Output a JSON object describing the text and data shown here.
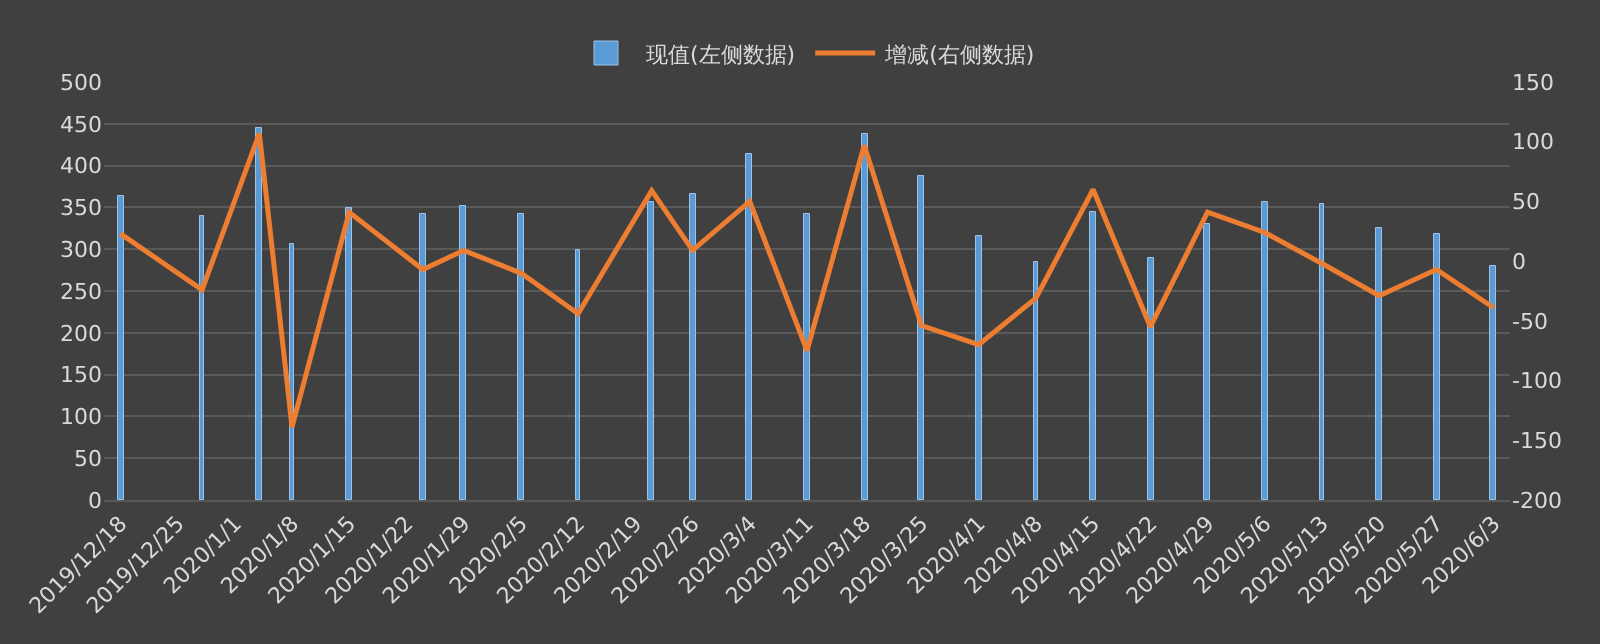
{
  "chart_data": {
    "type": "bar",
    "x": [
      "2019-12-18",
      "2019-12-28",
      "2020-01-04",
      "2020-01-08",
      "2020-01-15",
      "2020-01-24",
      "2020-01-29",
      "2020-02-05",
      "2020-02-12",
      "2020-02-21",
      "2020-02-26",
      "2020-03-04",
      "2020-03-11",
      "2020-03-18",
      "2020-03-25",
      "2020-04-01",
      "2020-04-08",
      "2020-04-15",
      "2020-04-22",
      "2020-04-29",
      "2020-05-06",
      "2020-05-13",
      "2020-05-20",
      "2020-05-27",
      "2020-06-03"
    ],
    "series": [
      {
        "name": "现值(左侧数据)",
        "color": "#5b9bd5",
        "values": [
          363,
          340,
          445,
          306,
          349,
          342,
          351,
          342,
          298,
          357,
          366,
          415,
          342,
          439,
          387,
          316,
          284,
          345,
          290,
          331,
          357,
          353,
          325,
          319,
          280
        ]
      },
      {
        "name": "增减(右侧数据)",
        "type": "line",
        "axis": "y2",
        "color": "#ed7d31",
        "values": [
          23,
          -24,
          107,
          -139,
          41,
          -7,
          9,
          -10,
          -44,
          59,
          9,
          50,
          -75,
          97,
          -54,
          -70,
          -31,
          60,
          -55,
          41,
          24,
          -2,
          -29,
          -7,
          -39
        ]
      }
    ],
    "xlim": [
      "2019-12-16",
      "2020-06-05"
    ],
    "xticks": [
      {
        "value": "2019-12-18",
        "label": "2019/12/18"
      },
      {
        "value": "2019-12-25",
        "label": "2019/12/25"
      },
      {
        "value": "2020-01-01",
        "label": "2020/1/1"
      },
      {
        "value": "2020-01-08",
        "label": "2020/1/8"
      },
      {
        "value": "2020-01-15",
        "label": "2020/1/15"
      },
      {
        "value": "2020-01-22",
        "label": "2020/1/22"
      },
      {
        "value": "2020-01-29",
        "label": "2020/1/29"
      },
      {
        "value": "2020-02-05",
        "label": "2020/2/5"
      },
      {
        "value": "2020-02-12",
        "label": "2020/2/12"
      },
      {
        "value": "2020-02-19",
        "label": "2020/2/19"
      },
      {
        "value": "2020-02-26",
        "label": "2020/2/26"
      },
      {
        "value": "2020-03-04",
        "label": "2020/3/4"
      },
      {
        "value": "2020-03-11",
        "label": "2020/3/11"
      },
      {
        "value": "2020-03-18",
        "label": "2020/3/18"
      },
      {
        "value": "2020-03-25",
        "label": "2020/3/25"
      },
      {
        "value": "2020-04-01",
        "label": "2020/4/1"
      },
      {
        "value": "2020-04-08",
        "label": "2020/4/8"
      },
      {
        "value": "2020-04-15",
        "label": "2020/4/15"
      },
      {
        "value": "2020-04-22",
        "label": "2020/4/22"
      },
      {
        "value": "2020-04-29",
        "label": "2020/4/29"
      },
      {
        "value": "2020-05-06",
        "label": "2020/5/6"
      },
      {
        "value": "2020-05-13",
        "label": "2020/5/13"
      },
      {
        "value": "2020-05-20",
        "label": "2020/5/20"
      },
      {
        "value": "2020-05-27",
        "label": "2020/5/27"
      },
      {
        "value": "2020-06-03",
        "label": "2020/6/3"
      }
    ],
    "ylim": [
      0,
      500
    ],
    "yticks": [
      0,
      50,
      100,
      150,
      200,
      250,
      300,
      350,
      400,
      450,
      500
    ],
    "y2lim": [
      -200,
      150
    ],
    "y2ticks": [
      -200,
      -150,
      -100,
      -50,
      0,
      50,
      100,
      150
    ],
    "grid": "y",
    "legend": "top",
    "marker": "none",
    "line_style": "solid"
  }
}
